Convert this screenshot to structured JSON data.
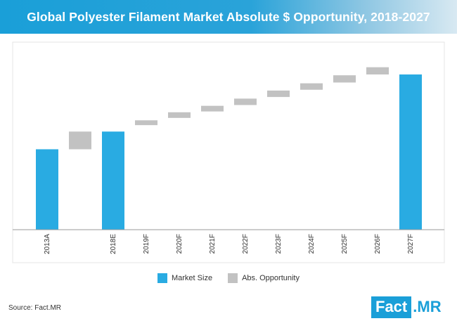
{
  "title": "Global Polyester Filament Market Absolute $ Opportunity, 2018-2027",
  "colors": {
    "market_size": "#29abe2",
    "opportunity": "#c2c2c2",
    "header": "#1a9fd8"
  },
  "legend": {
    "market_size": "Market Size",
    "opportunity": "Abs. Opportunity"
  },
  "source": "Source: Fact.MR",
  "logo": {
    "fact": "Fact",
    "mr": ".MR"
  },
  "chart_data": {
    "type": "bar",
    "subtype": "waterfall",
    "title": "Global Polyester Filament Market Absolute $ Opportunity, 2018-2027",
    "xlabel": "",
    "ylabel": "",
    "categories": [
      "2013A",
      "",
      "2018E",
      "2019F",
      "2020F",
      "2021F",
      "2022F",
      "2023F",
      "2024F",
      "2025F",
      "2026F",
      "2027F"
    ],
    "bars": [
      {
        "category": "2013A",
        "kind": "market",
        "start": 0,
        "end": 100
      },
      {
        "category": "",
        "kind": "opportunity",
        "start": 100,
        "end": 122
      },
      {
        "category": "2018E",
        "kind": "market",
        "start": 0,
        "end": 122
      },
      {
        "category": "2019F",
        "kind": "opportunity",
        "start": 130,
        "end": 136
      },
      {
        "category": "2020F",
        "kind": "opportunity",
        "start": 139,
        "end": 146
      },
      {
        "category": "2021F",
        "kind": "opportunity",
        "start": 147,
        "end": 154
      },
      {
        "category": "2022F",
        "kind": "opportunity",
        "start": 155,
        "end": 163
      },
      {
        "category": "2023F",
        "kind": "opportunity",
        "start": 165,
        "end": 173
      },
      {
        "category": "2024F",
        "kind": "opportunity",
        "start": 174,
        "end": 182
      },
      {
        "category": "2025F",
        "kind": "opportunity",
        "start": 183,
        "end": 192
      },
      {
        "category": "2026F",
        "kind": "opportunity",
        "start": 193,
        "end": 202
      },
      {
        "category": "2027F",
        "kind": "market",
        "start": 0,
        "end": 193
      }
    ],
    "ylim": [
      0,
      200
    ],
    "legend_position": "bottom",
    "grid": false
  }
}
